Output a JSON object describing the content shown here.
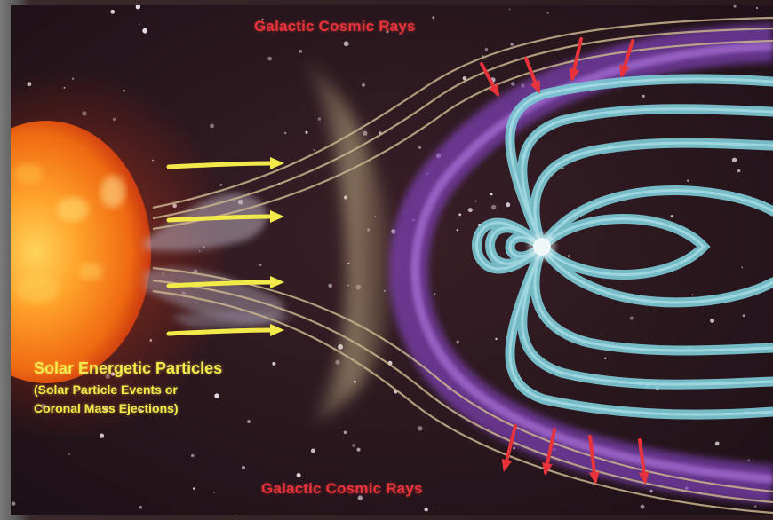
{
  "labels": {
    "top_cosmic_rays": "Galactic Cosmic Rays",
    "bottom_cosmic_rays": "Galactic Cosmic Rays",
    "solar_title": "Solar Energetic Particles",
    "solar_sub_line1": "(Solar Particle Events or",
    "solar_sub_line2": "Coronal Mass Ejections)"
  },
  "colors": {
    "space_background": "#2a1a1e",
    "sun": "#ff7a10",
    "solar_arrows": "#f2ea4a",
    "cosmic_ray_arrows": "#e8333a",
    "magnetopause": "#8a4fc0",
    "field_lines": "#7cc8d4",
    "solar_wind_lines": "#c9b48e",
    "bow_shock": "#b8a27a"
  },
  "icons": {
    "sun": "sun-icon",
    "earth": "earth-icon"
  }
}
